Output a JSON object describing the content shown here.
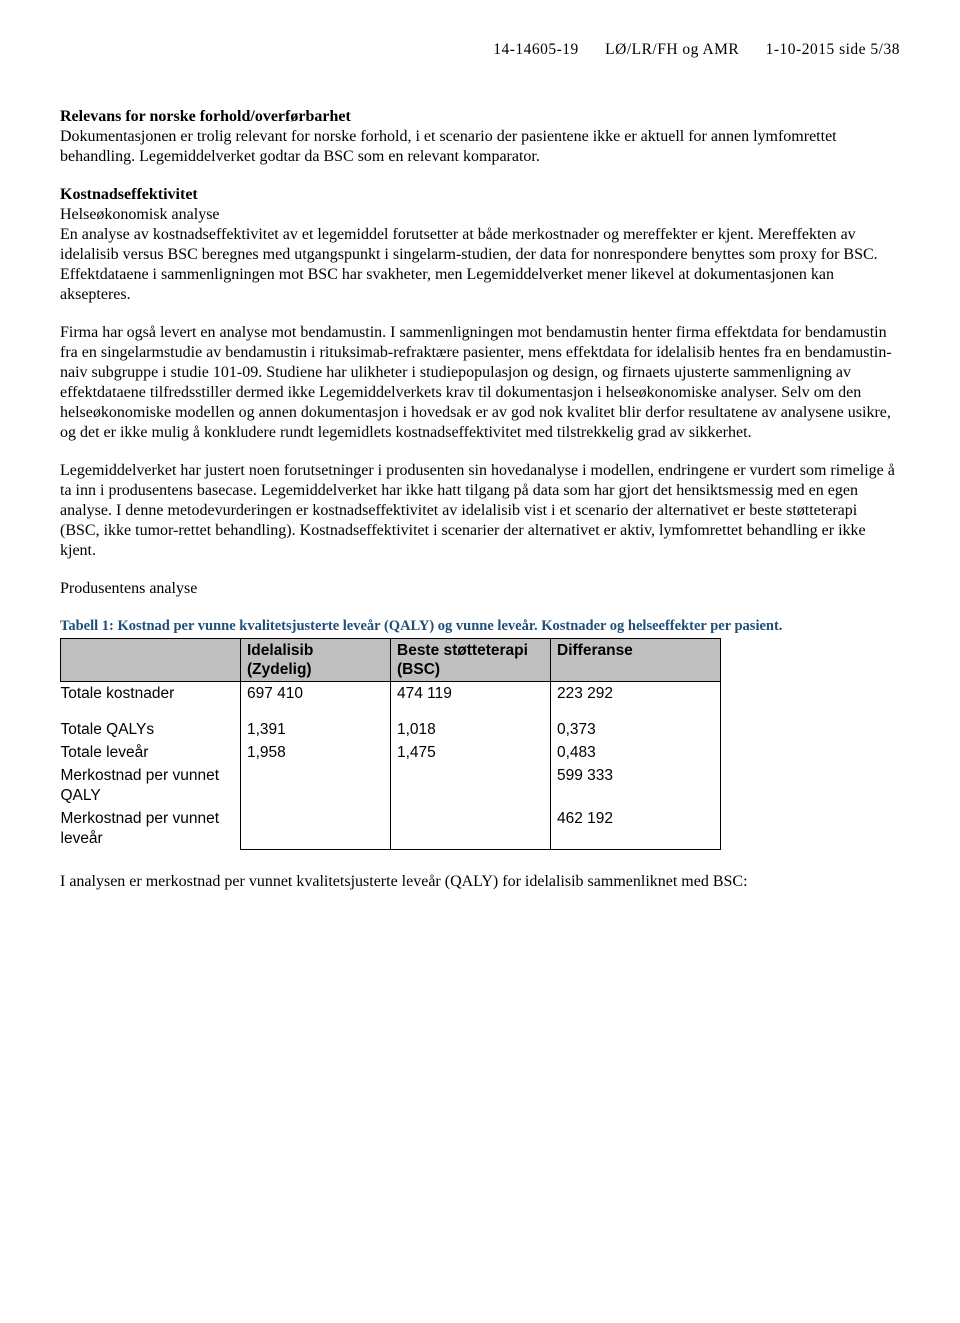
{
  "header": {
    "case_no": "14-14605-19",
    "ref": "LØ/LR/FH og AMR",
    "date_page": "1-10-2015  side 5/38"
  },
  "sections": {
    "h1": "Relevans for norske forhold/overførbarhet",
    "p1": "Dokumentasjonen er trolig relevant for norske forhold, i et scenario der pasientene ikke er aktuell for annen lymfomrettet behandling. Legemiddelverket godtar da BSC som en relevant komparator.",
    "h2": "Kostnadseffektivitet",
    "sub1": "Helseøkonomisk analyse",
    "p2": "En analyse av kostnadseffektivitet av et legemiddel forutsetter at både merkostnader og mereffekter er kjent. Mereffekten av idelalisib versus BSC beregnes med utgangspunkt i singelarm-studien, der data for nonrespondere benyttes som proxy for BSC. Effektdataene i sammenligningen mot BSC har svakheter, men Legemiddelverket mener likevel at dokumentasjonen kan aksepteres.",
    "p3": "Firma har også levert en analyse mot bendamustin. I sammenligningen mot bendamustin henter firma effektdata for bendamustin fra en singelarmstudie av bendamustin i rituksimab-refraktære pasienter, mens effektdata for idelalisib hentes fra en bendamustin-naiv subgruppe i studie 101-09. Studiene har ulikheter i studiepopulasjon og design, og firnaets ujusterte sammenligning av effektdataene tilfredsstiller dermed ikke Legemiddelverkets krav til dokumentasjon i helseøkonomiske analyser. Selv om den helseøkonomiske modellen og annen dokumentasjon i hovedsak er av god nok kvalitet blir derfor resultatene av analysene usikre, og det er ikke mulig å konkludere rundt legemidlets kostnadseffektivitet med tilstrekkelig grad av sikkerhet.",
    "p4": "Legemiddelverket har justert noen forutsetninger i produsenten sin hovedanalyse i modellen, endringene er vurdert som rimelige å ta inn i produsentens basecase. Legemiddelverket har ikke hatt tilgang på data som har gjort det hensiktsmessig med en egen analyse.  I denne metodevurderingen er kostnadseffektivitet av idelalisib vist i et scenario der alternativet er beste støtteterapi (BSC, ikke tumor-rettet behandling). Kostnadseffektivitet i scenarier der alternativet er aktiv, lymfomrettet behandling er ikke kjent.",
    "sub2": "Produsentens analyse",
    "p5": "I analysen er merkostnad per vunnet kvalitetsjusterte leveår (QALY) for idelalisib sammenliknet med BSC:"
  },
  "table": {
    "caption": "Tabell 1: Kostnad per vunne kvalitetsjusterte leveår (QALY) og vunne leveår. Kostnader og helseeffekter per pasient.",
    "columns": [
      "",
      "Idelalisib (Zydelig)",
      "Beste støtteterapi (BSC)",
      "Differanse"
    ],
    "rows": [
      {
        "label": "Totale kostnader",
        "a": "697 410",
        "b": "474 119",
        "c": "223 292",
        "sep_after": true
      },
      {
        "label": "Totale QALYs",
        "a": "1,391",
        "b": "1,018",
        "c": "0,373"
      },
      {
        "label": "Totale leveår",
        "a": "1,958",
        "b": "1,475",
        "c": "0,483"
      },
      {
        "label": "Merkostnad per vunnet QALY",
        "a": "",
        "b": "",
        "c": "599 333"
      },
      {
        "label": "Merkostnad per vunnet leveår",
        "a": "",
        "b": "",
        "c": "462 192"
      }
    ]
  }
}
